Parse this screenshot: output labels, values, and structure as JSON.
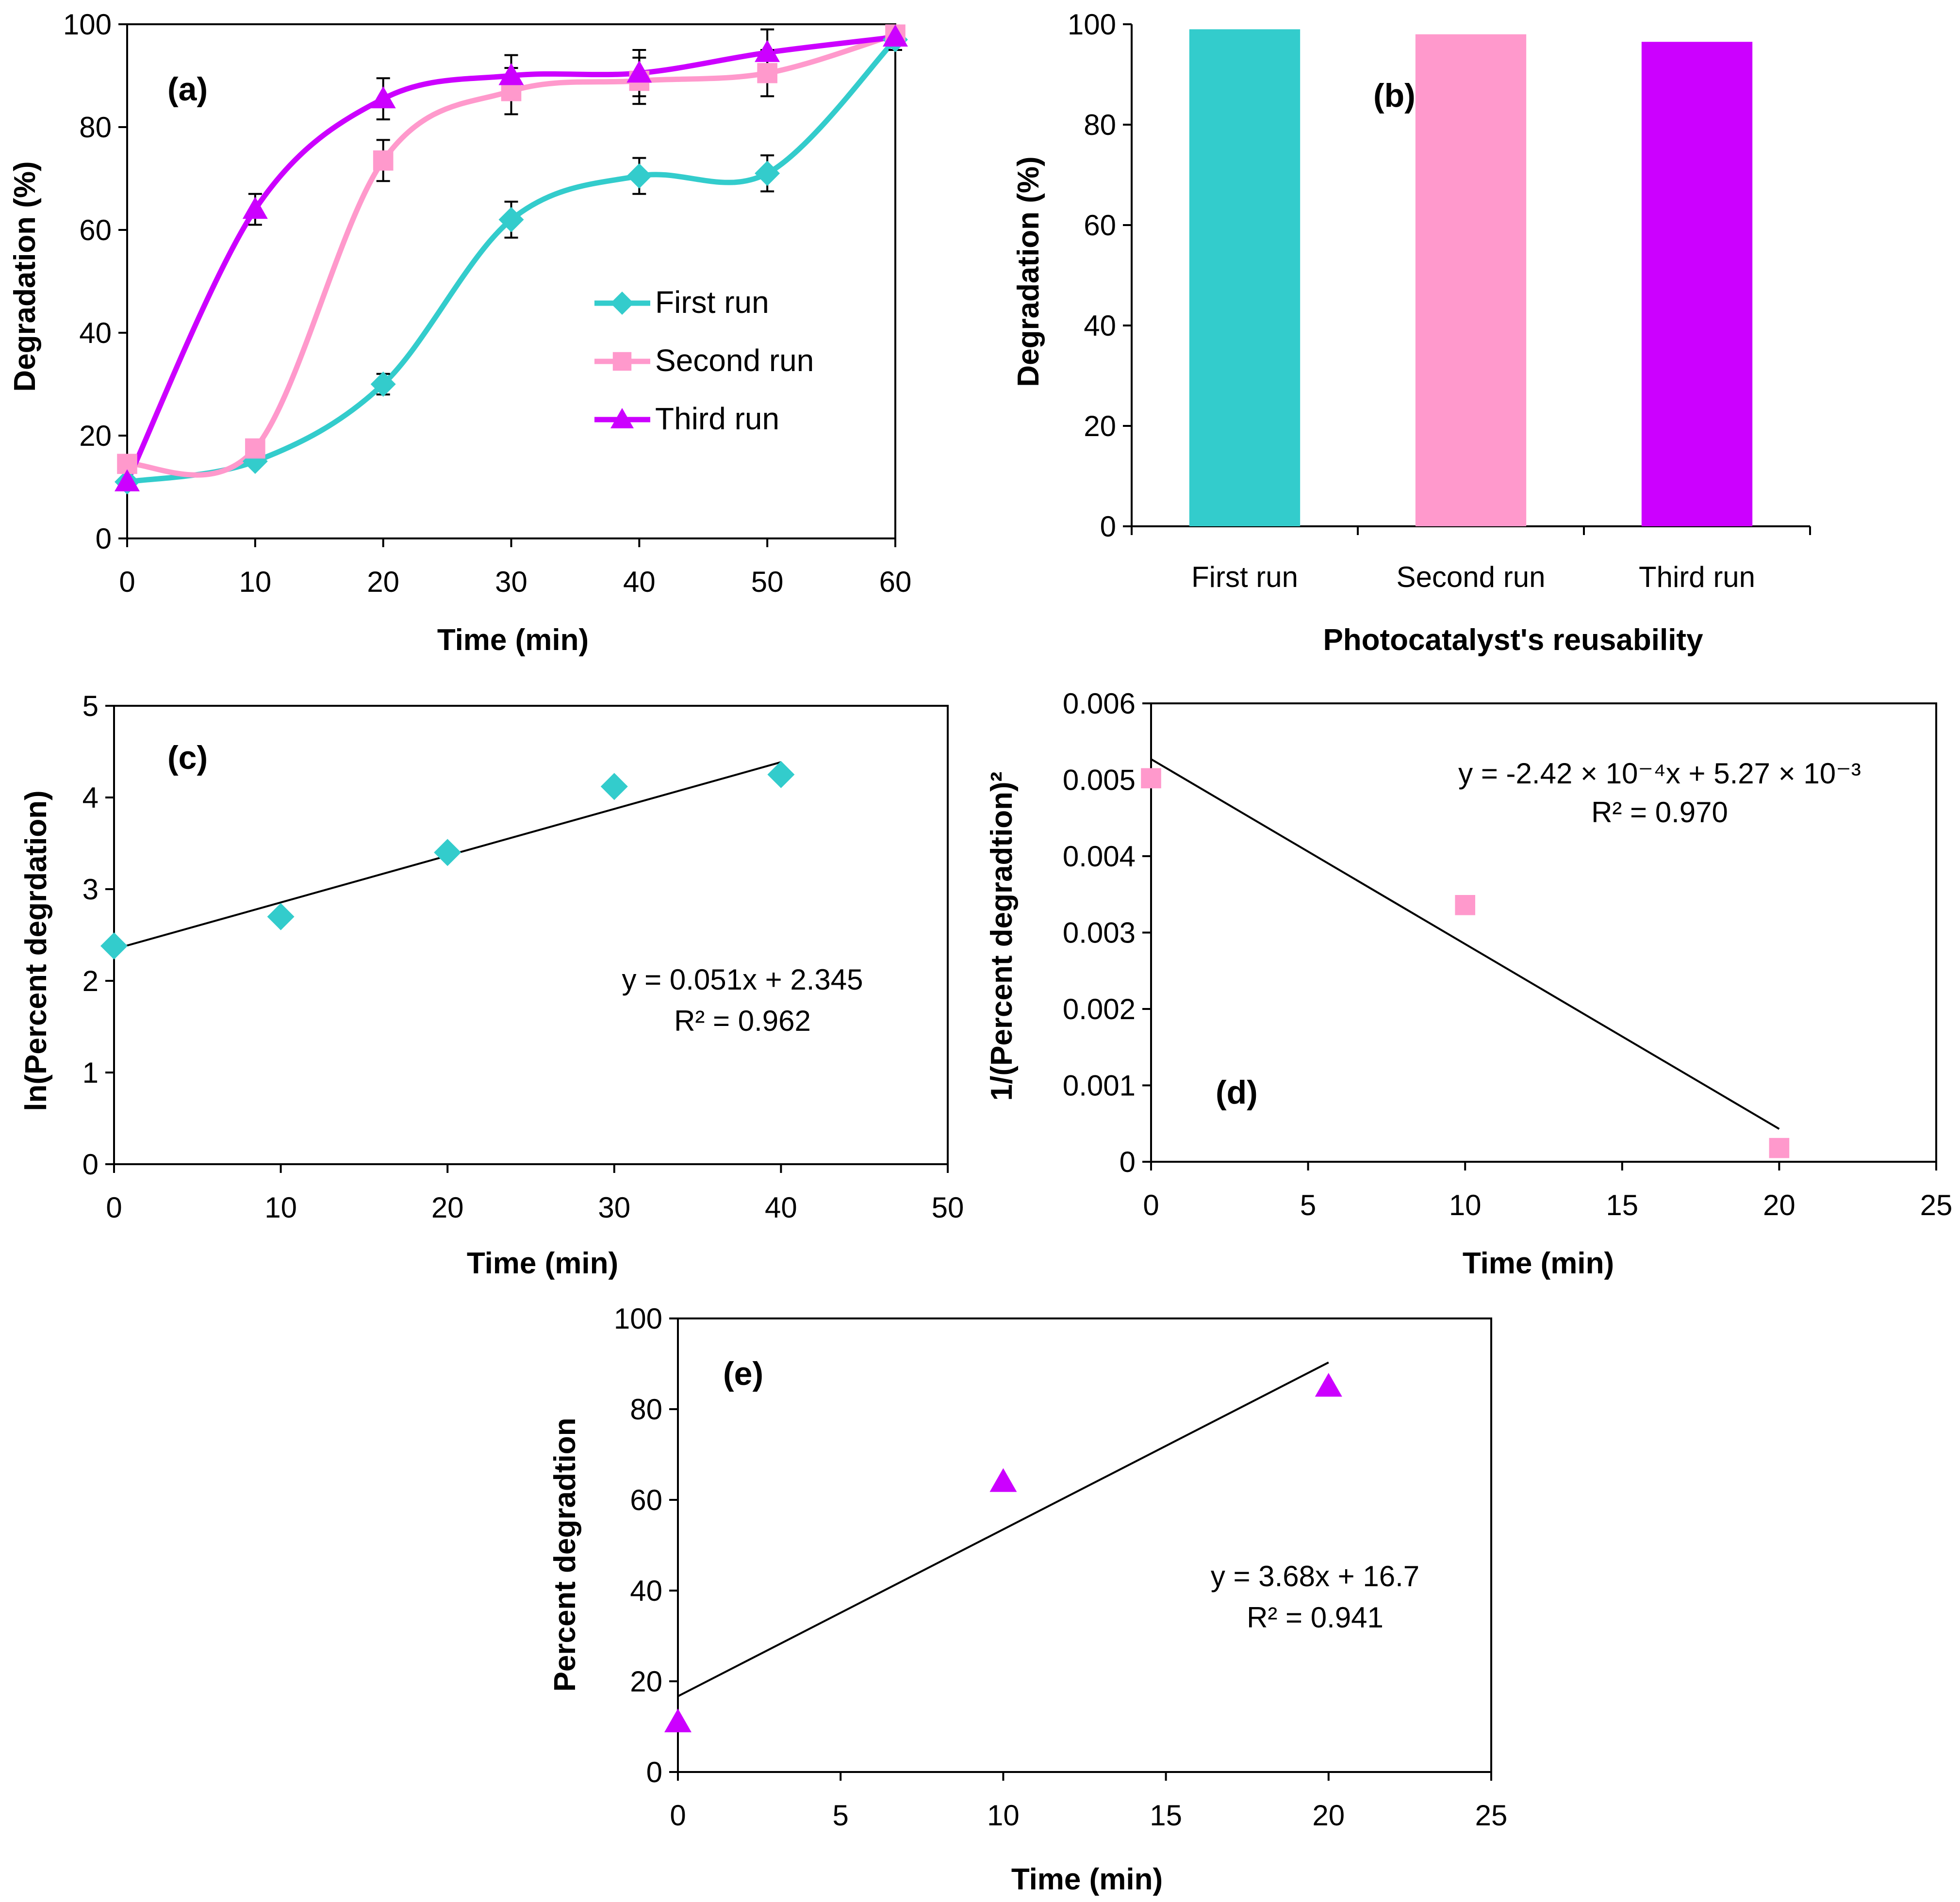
{
  "colors": {
    "first": "#33CCCC",
    "second": "#FF99CC",
    "third": "#CC00FF",
    "axis": "#000000"
  },
  "chart_data": [
    {
      "id": "a",
      "panel_label": "(a)",
      "type": "line",
      "xlabel": "Time (min)",
      "ylabel": "Degradation (%)",
      "xlim": [
        0,
        60
      ],
      "ylim": [
        0,
        100
      ],
      "xticks": [
        "0",
        "10",
        "20",
        "30",
        "40",
        "50",
        "60"
      ],
      "yticks": [
        "0",
        "20",
        "40",
        "60",
        "80",
        "100"
      ],
      "x": [
        0,
        10,
        20,
        30,
        40,
        50,
        60
      ],
      "legend_position": "center-right",
      "series": [
        {
          "name": "First run",
          "marker": "diamond",
          "color": "#33CCCC",
          "values": [
            11,
            15,
            30,
            62,
            70.5,
            71,
            97
          ],
          "errors": [
            0,
            0,
            2,
            3.5,
            3.5,
            3.5,
            2
          ]
        },
        {
          "name": "Second run",
          "marker": "square",
          "color": "#FF99CC",
          "values": [
            14.5,
            17.5,
            73.5,
            87,
            89,
            90.5,
            98
          ],
          "errors": [
            0,
            0,
            4,
            4.5,
            4.5,
            4.5,
            0
          ]
        },
        {
          "name": "Third run",
          "marker": "triangle",
          "color": "#CC00FF",
          "values": [
            11,
            64,
            85.5,
            90,
            90.5,
            94.5,
            97.5
          ],
          "errors": [
            0,
            3,
            4,
            4,
            4.5,
            4.5,
            0
          ]
        }
      ]
    },
    {
      "id": "b",
      "panel_label": "(b)",
      "type": "bar",
      "xlabel": "Photocatalyst's reusability",
      "ylabel": "Degradation (%)",
      "ylim": [
        0,
        100
      ],
      "yticks": [
        "0",
        "20",
        "40",
        "60",
        "80",
        "100"
      ],
      "categories": [
        "First run",
        "Second run",
        "Third run"
      ],
      "values": [
        99,
        98,
        96.5
      ],
      "colors": [
        "#33CCCC",
        "#FF99CC",
        "#CC00FF"
      ]
    },
    {
      "id": "c",
      "panel_label": "(c)",
      "type": "scatter",
      "xlabel": "Time (min)",
      "ylabel": "ln(Percent degrdation)",
      "xlim": [
        0,
        50
      ],
      "ylim": [
        0,
        5
      ],
      "xticks": [
        "0",
        "10",
        "20",
        "30",
        "40",
        "50"
      ],
      "yticks": [
        "0",
        "1",
        "2",
        "3",
        "4",
        "5"
      ],
      "x": [
        0,
        10,
        20,
        30,
        40
      ],
      "y": [
        2.38,
        2.7,
        3.4,
        4.12,
        4.25
      ],
      "marker": "diamond",
      "color": "#33CCCC",
      "fit": {
        "slope": 0.051,
        "intercept": 2.345,
        "x_range": [
          0,
          40
        ]
      },
      "equation": "y = 0.051x + 2.345",
      "r2": "R² = 0.962"
    },
    {
      "id": "d",
      "panel_label": "(d)",
      "type": "scatter",
      "xlabel": "Time (min)",
      "ylabel": "1/(Percent degradtion)²",
      "xlim": [
        0,
        25
      ],
      "ylim": [
        0,
        0.006
      ],
      "xticks": [
        "0",
        "5",
        "10",
        "15",
        "20",
        "25"
      ],
      "yticks": [
        "0",
        "0.001",
        "0.002",
        "0.003",
        "0.004",
        "0.005",
        "0.006"
      ],
      "x": [
        0,
        10,
        20
      ],
      "y": [
        0.00502,
        0.00336,
        0.00018
      ],
      "marker": "square",
      "color": "#FF99CC",
      "fit": {
        "slope": -0.000242,
        "intercept": 0.00527,
        "x_range": [
          0,
          20
        ]
      },
      "equation": "y = -2.42 × 10⁻⁴x + 5.27 × 10⁻³",
      "r2": "R² = 0.970"
    },
    {
      "id": "e",
      "panel_label": "(e)",
      "type": "scatter",
      "xlabel": "Time (min)",
      "ylabel": "Percent degradtion",
      "xlim": [
        0,
        25
      ],
      "ylim": [
        0,
        100
      ],
      "xticks": [
        "0",
        "5",
        "10",
        "15",
        "20",
        "25"
      ],
      "yticks": [
        "0",
        "20",
        "40",
        "60",
        "80",
        "100"
      ],
      "x": [
        0,
        10,
        20
      ],
      "y": [
        11,
        64,
        85
      ],
      "marker": "triangle",
      "color": "#CC00FF",
      "fit": {
        "slope": 3.68,
        "intercept": 16.7,
        "x_range": [
          0,
          20
        ]
      },
      "equation": "y = 3.68x + 16.7",
      "r2": "R² = 0.941"
    }
  ]
}
